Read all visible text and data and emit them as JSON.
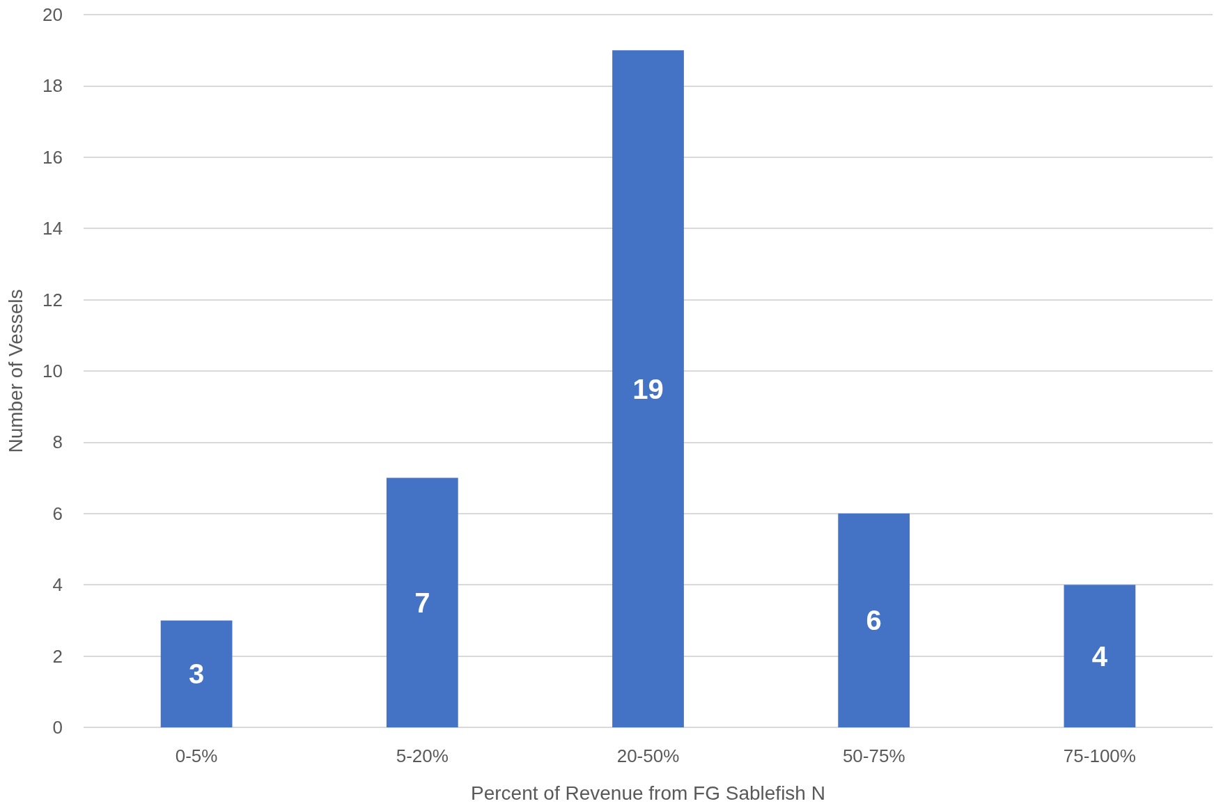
{
  "chart_data": {
    "type": "bar",
    "xlabel": "Percent of Revenue from FG Sablefish N",
    "ylabel": "Number of Vessels",
    "categories": [
      "0-5%",
      "5-20%",
      "20-50%",
      "50-75%",
      "75-100%"
    ],
    "values": [
      3,
      7,
      19,
      6,
      4
    ],
    "color": "#4472c4",
    "data_labels": true,
    "ylim": [
      0,
      20
    ],
    "yticks": [
      0,
      2,
      4,
      6,
      8,
      10,
      12,
      14,
      16,
      18,
      20
    ],
    "grid": "y"
  }
}
